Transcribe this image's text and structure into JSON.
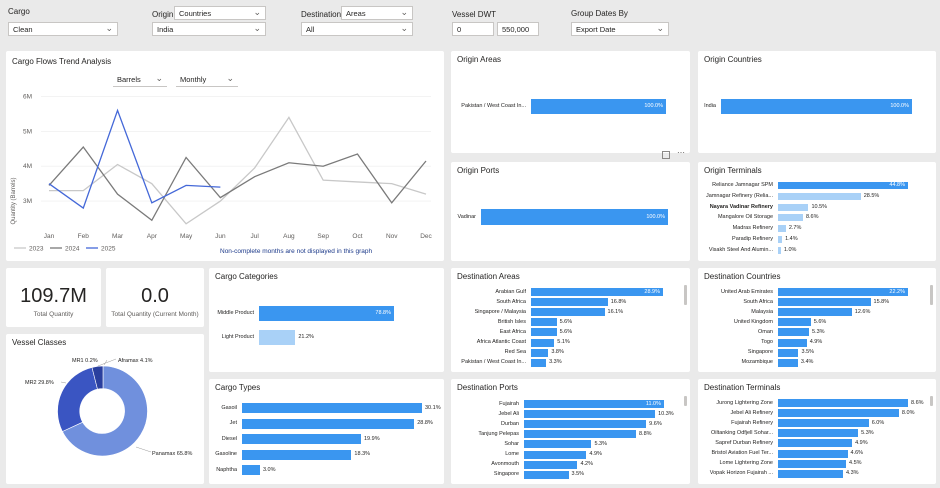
{
  "filters": {
    "cargo": {
      "label": "Cargo",
      "value": "Clean"
    },
    "origin": {
      "label": "Origin",
      "type": "Countries",
      "value": "India"
    },
    "destination": {
      "label": "Destination",
      "type": "Areas",
      "value": "All"
    },
    "vessel_dwt": {
      "label": "Vessel DWT",
      "min": "0",
      "max": "550,000"
    },
    "group_dates": {
      "label": "Group Dates By",
      "value": "Export Date"
    }
  },
  "trend": {
    "title": "Cargo Flows Trend Analysis",
    "unit_select": "Barrels",
    "period_select": "Monthly",
    "note": "Non-complete months are not displayed in this graph"
  },
  "kpis": {
    "total_quantity": {
      "value": "109.7M",
      "label": "Total Quantity"
    },
    "current_month": {
      "value": "0.0",
      "label": "Total Quantity (Current Month)"
    }
  },
  "vessel_classes": {
    "title": "Vessel Classes",
    "labels": {
      "mr1": "MR1 0.2%",
      "aframax": "Aframax 4.1%",
      "mr2": "MR2 29.8%",
      "panamax": "Panamax 65.8%"
    },
    "colors": {
      "panamax": "#7090dd",
      "mr2": "#3a55c2",
      "aframax": "#2a3f9e",
      "mr1": "#9aa8e0"
    }
  },
  "origin_areas": {
    "title": "Origin Areas",
    "items": [
      {
        "label": "Pakistan / West Coast In...",
        "value": 100.0,
        "text": "100.0%"
      }
    ]
  },
  "origin_countries": {
    "title": "Origin Countries",
    "items": [
      {
        "label": "India",
        "value": 100.0,
        "text": "100.0%"
      }
    ]
  },
  "origin_ports": {
    "title": "Origin Ports",
    "items": [
      {
        "label": "Vadinar",
        "value": 100.0,
        "text": "100.0%"
      }
    ]
  },
  "origin_terminals": {
    "title": "Origin Terminals",
    "items": [
      {
        "label": "Reliance Jamnagar SPM",
        "value": 44.8,
        "text": "44.8%"
      },
      {
        "label": "Jamnagar Refinery (Relia...",
        "value": 28.5,
        "text": "28.5%"
      },
      {
        "label": "Nayara Vadinar Refinery",
        "value": 10.5,
        "text": "10.5%"
      },
      {
        "label": "Mangalore Oil Storage",
        "value": 8.6,
        "text": "8.6%"
      },
      {
        "label": "Madras Refinery",
        "value": 2.7,
        "text": "2.7%"
      },
      {
        "label": "Paradip Refinery",
        "value": 1.4,
        "text": "1.4%"
      },
      {
        "label": "Visakh Steel And Alumin...",
        "value": 1.0,
        "text": "1.0%"
      }
    ]
  },
  "cargo_categories": {
    "title": "Cargo Categories",
    "items": [
      {
        "label": "Middle Product",
        "value": 78.8,
        "text": "78.8%"
      },
      {
        "label": "Light Product",
        "value": 21.2,
        "text": "21.2%"
      }
    ]
  },
  "cargo_types": {
    "title": "Cargo Types",
    "items": [
      {
        "label": "Gasoil",
        "value": 30.1,
        "text": "30.1%"
      },
      {
        "label": "Jet",
        "value": 28.8,
        "text": "28.8%"
      },
      {
        "label": "Diesel",
        "value": 19.9,
        "text": "19.9%"
      },
      {
        "label": "Gasoline",
        "value": 18.3,
        "text": "18.3%"
      },
      {
        "label": "Naphtha",
        "value": 3.0,
        "text": "3.0%"
      }
    ]
  },
  "destination_areas": {
    "title": "Destination Areas",
    "items": [
      {
        "label": "Arabian Gulf",
        "value": 28.9,
        "text": "28.9%"
      },
      {
        "label": "South Africa",
        "value": 16.8,
        "text": "16.8%"
      },
      {
        "label": "Singapore / Malaysia",
        "value": 16.1,
        "text": "16.1%"
      },
      {
        "label": "British Isles",
        "value": 5.6,
        "text": "5.6%"
      },
      {
        "label": "East Africa",
        "value": 5.6,
        "text": "5.6%"
      },
      {
        "label": "Africa Atlantic Coast",
        "value": 5.1,
        "text": "5.1%"
      },
      {
        "label": "Red Sea",
        "value": 3.8,
        "text": "3.8%"
      },
      {
        "label": "Pakistan / West Coast In...",
        "value": 3.3,
        "text": "3.3%"
      }
    ]
  },
  "destination_countries": {
    "title": "Destination Countries",
    "items": [
      {
        "label": "United Arab Emirates",
        "value": 22.2,
        "text": "22.2%"
      },
      {
        "label": "South Africa",
        "value": 15.8,
        "text": "15.8%"
      },
      {
        "label": "Malaysia",
        "value": 12.6,
        "text": "12.6%"
      },
      {
        "label": "United Kingdom",
        "value": 5.6,
        "text": "5.6%"
      },
      {
        "label": "Oman",
        "value": 5.3,
        "text": "5.3%"
      },
      {
        "label": "Togo",
        "value": 4.9,
        "text": "4.9%"
      },
      {
        "label": "Singapore",
        "value": 3.5,
        "text": "3.5%"
      },
      {
        "label": "Mozambique",
        "value": 3.4,
        "text": "3.4%"
      }
    ]
  },
  "destination_ports": {
    "title": "Destination Ports",
    "items": [
      {
        "label": "Fujairah",
        "value": 11.0,
        "text": "11.0%"
      },
      {
        "label": "Jebel Ali",
        "value": 10.3,
        "text": "10.3%"
      },
      {
        "label": "Durban",
        "value": 9.6,
        "text": "9.6%"
      },
      {
        "label": "Tanjung Pelepas",
        "value": 8.8,
        "text": "8.8%"
      },
      {
        "label": "Sohar",
        "value": 5.3,
        "text": "5.3%"
      },
      {
        "label": "Lome",
        "value": 4.9,
        "text": "4.9%"
      },
      {
        "label": "Avonmouth",
        "value": 4.2,
        "text": "4.2%"
      },
      {
        "label": "Singapore",
        "value": 3.5,
        "text": "3.5%"
      }
    ]
  },
  "destination_terminals": {
    "title": "Destination Terminals",
    "items": [
      {
        "label": "Jurong Lightering Zone",
        "value": 8.6,
        "text": "8.6%"
      },
      {
        "label": "Jebel Ali Refinery",
        "value": 8.0,
        "text": "8.0%"
      },
      {
        "label": "Fujairah Refinery",
        "value": 6.0,
        "text": "6.0%"
      },
      {
        "label": "Oiltanking Odfjell Sohar...",
        "value": 5.3,
        "text": "5.3%"
      },
      {
        "label": "Sapref Durban Refinery",
        "value": 4.9,
        "text": "4.9%"
      },
      {
        "label": "Bristol Aviation Fuel Ter...",
        "value": 4.6,
        "text": "4.6%"
      },
      {
        "label": "Lome Lightering Zone",
        "value": 4.5,
        "text": "4.5%"
      },
      {
        "label": "Vopak Horizon Fujairah ...",
        "value": 4.3,
        "text": "4.3%"
      }
    ]
  },
  "chart_data": {
    "type": "line",
    "title": "",
    "xlabel": "",
    "ylabel": "Quantity (Barrels)",
    "categories": [
      "Jan",
      "Feb",
      "Mar",
      "Apr",
      "May",
      "Jun",
      "Jul",
      "Aug",
      "Sep",
      "Oct",
      "Nov",
      "Dec"
    ],
    "y_ticks": [
      "3M",
      "4M",
      "5M",
      "6M"
    ],
    "ylim": [
      2200000,
      6300000
    ],
    "legend_position": "bottom-left",
    "series": [
      {
        "name": "2023",
        "color": "#c8c8c8",
        "values": [
          3300000,
          3300000,
          4050000,
          3500000,
          2350000,
          3000000,
          3950000,
          5400000,
          3600000,
          3550000,
          3500000,
          3200000
        ]
      },
      {
        "name": "2024",
        "color": "#7a7a7a",
        "values": [
          3450000,
          4550000,
          3200000,
          2450000,
          4250000,
          3100000,
          3700000,
          4100000,
          4000000,
          4350000,
          2950000,
          4150000
        ]
      },
      {
        "name": "2025",
        "color": "#4468d8",
        "values": [
          3500000,
          2800000,
          5600000,
          2950000,
          3450000,
          3400000,
          null,
          null,
          null,
          null,
          null,
          null
        ]
      }
    ]
  }
}
